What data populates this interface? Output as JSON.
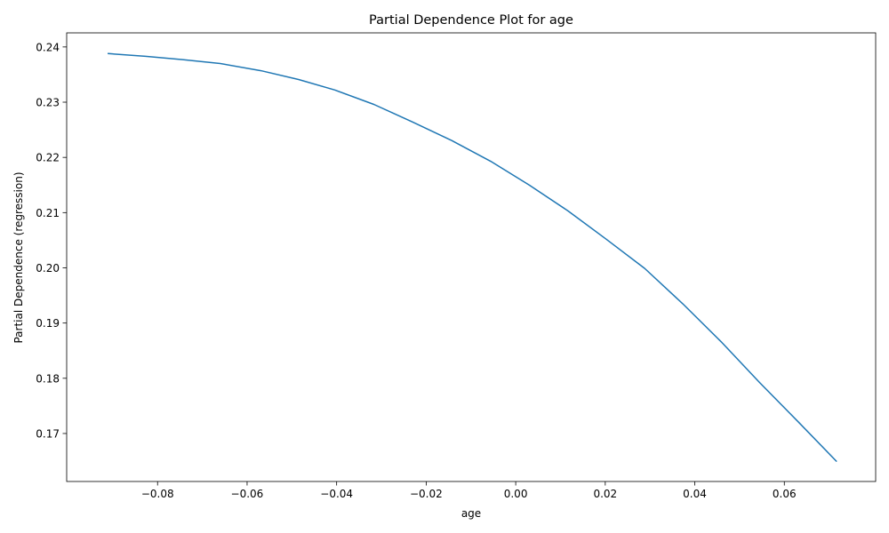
{
  "chart_data": {
    "type": "line",
    "title": "Partial Dependence Plot for age",
    "xlabel": "age",
    "ylabel": "Partial Dependence (regression)",
    "xlim": [
      -0.1003,
      0.0804
    ],
    "ylim": [
      0.16131,
      0.24255
    ],
    "xticks": [
      -0.08,
      -0.06,
      -0.04,
      -0.02,
      0.0,
      0.02,
      0.04,
      0.06
    ],
    "xtick_labels": [
      "−0.08",
      "−0.06",
      "−0.04",
      "−0.02",
      "0.00",
      "0.02",
      "0.04",
      "0.06"
    ],
    "yticks": [
      0.17,
      0.18,
      0.19,
      0.2,
      0.21,
      0.22,
      0.23,
      0.24
    ],
    "ytick_labels": [
      "0.17",
      "0.18",
      "0.19",
      "0.20",
      "0.21",
      "0.22",
      "0.23",
      "0.24"
    ],
    "grid": false,
    "series": [
      {
        "color": "#1f77b4",
        "x": [
          -0.091,
          -0.0827,
          -0.0744,
          -0.066,
          -0.0569,
          -0.0485,
          -0.0404,
          -0.0317,
          -0.023,
          -0.0144,
          -0.0056,
          0.003,
          0.0117,
          0.0202,
          0.0288,
          0.0373,
          0.0459,
          0.0545,
          0.063,
          0.0716
        ],
        "y": [
          0.2388,
          0.2383,
          0.2377,
          0.237,
          0.2357,
          0.2341,
          0.2322,
          0.2296,
          0.2264,
          0.2231,
          0.2193,
          0.215,
          0.2103,
          0.2052,
          0.1999,
          0.1935,
          0.1866,
          0.1792,
          0.1722,
          0.165
        ]
      }
    ]
  }
}
